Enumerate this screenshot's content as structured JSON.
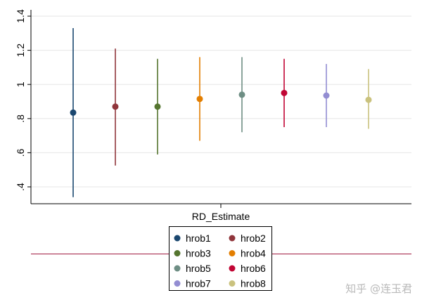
{
  "chart_data": {
    "type": "scatter",
    "title": "",
    "xlabel": "RD_Estimate",
    "ylabel": "",
    "ylim": [
      0.3,
      1.44
    ],
    "yticks": [
      0.4,
      0.6,
      0.8,
      1.0,
      1.2,
      1.4
    ],
    "ytick_labels": [
      ".4",
      ".6",
      ".8",
      "1",
      "1.2",
      "1.4"
    ],
    "grid": true,
    "legend_position": "bottom",
    "legend_columns": 2,
    "series": [
      {
        "name": "hrob1",
        "estimate": 0.835,
        "ci_low": 0.34,
        "ci_high": 1.33,
        "color": "#1a476f"
      },
      {
        "name": "hrob2",
        "estimate": 0.87,
        "ci_low": 0.525,
        "ci_high": 1.21,
        "color": "#90353b"
      },
      {
        "name": "hrob3",
        "estimate": 0.87,
        "ci_low": 0.59,
        "ci_high": 1.15,
        "color": "#55752f"
      },
      {
        "name": "hrob4",
        "estimate": 0.915,
        "ci_low": 0.67,
        "ci_high": 1.16,
        "color": "#e37e00"
      },
      {
        "name": "hrob5",
        "estimate": 0.94,
        "ci_low": 0.72,
        "ci_high": 1.16,
        "color": "#6e8e84"
      },
      {
        "name": "hrob6",
        "estimate": 0.95,
        "ci_low": 0.75,
        "ci_high": 1.15,
        "color": "#c10534"
      },
      {
        "name": "hrob7",
        "estimate": 0.935,
        "ci_low": 0.75,
        "ci_high": 1.12,
        "color": "#938dd2"
      },
      {
        "name": "hrob8",
        "estimate": 0.91,
        "ci_low": 0.74,
        "ci_high": 1.09,
        "color": "#cac27e"
      }
    ],
    "reference_line_color": "#a0173d"
  },
  "watermark": "知乎 @连玉君"
}
